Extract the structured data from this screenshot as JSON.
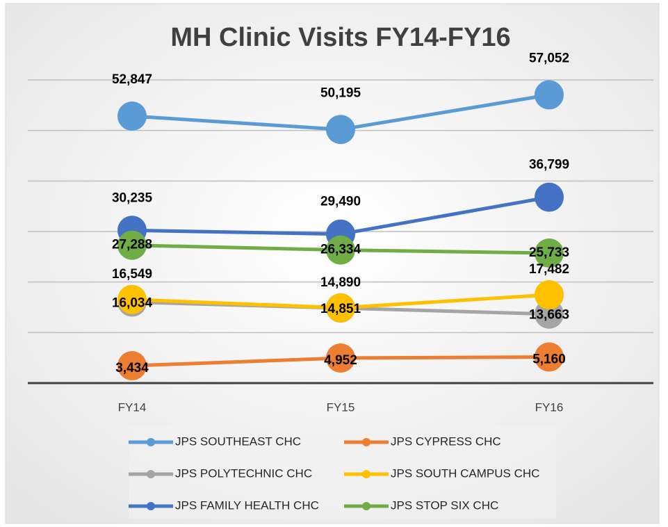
{
  "chart_data": {
    "type": "line",
    "title": "MH Clinic Visits FY14-FY16",
    "categories": [
      "FY14",
      "FY15",
      "FY16"
    ],
    "ylim": [
      0,
      60000
    ],
    "yticks": [
      0,
      10000,
      20000,
      30000,
      40000,
      50000,
      60000
    ],
    "grid": true,
    "legend": "bottom",
    "series": [
      {
        "name": "JPS SOUTHEAST CHC",
        "color": "#5b9bd5",
        "values": [
          52847,
          50195,
          57052
        ],
        "value_labels": [
          "52,847",
          "50,195",
          "57,052"
        ]
      },
      {
        "name": "JPS CYPRESS CHC",
        "color": "#ed7d31",
        "values": [
          3434,
          4952,
          5160
        ],
        "value_labels": [
          "3,434",
          "4,952",
          "5,160"
        ]
      },
      {
        "name": "JPS POLYTECHNIC CHC",
        "color": "#a5a5a5",
        "values": [
          16034,
          14851,
          13663
        ],
        "value_labels": [
          "16,034",
          "14,851",
          "13,663"
        ]
      },
      {
        "name": "JPS SOUTH CAMPUS CHC",
        "color": "#ffc000",
        "values": [
          16549,
          14890,
          17482
        ],
        "value_labels": [
          "16,549",
          "14,890",
          "17,482"
        ]
      },
      {
        "name": "JPS FAMILY HEALTH CHC",
        "color": "#4472c4",
        "values": [
          30235,
          29490,
          36799
        ],
        "value_labels": [
          "30,235",
          "29,490",
          "36,799"
        ]
      },
      {
        "name": "JPS STOP SIX CHC",
        "color": "#70ad47",
        "values": [
          27288,
          26334,
          25733
        ],
        "value_labels": [
          "27,288",
          "26,334",
          "25,733"
        ]
      }
    ]
  }
}
